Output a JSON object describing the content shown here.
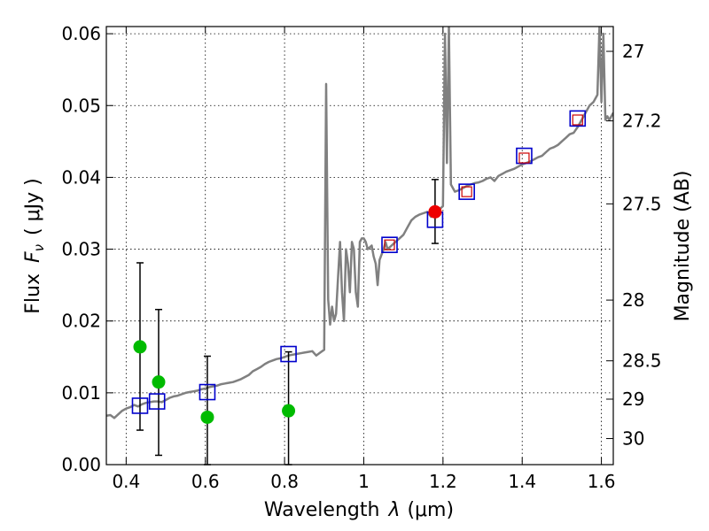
{
  "chart_data": {
    "type": "scatter",
    "title": "",
    "xlabel_main": "Wavelength",
    "xlabel_symbol": "λ",
    "xlabel_unit": "(μm)",
    "ylabel_main": "Flux",
    "ylabel_symbol": "F",
    "ylabel_subscript": "ν",
    "ylabel_unit": "( μJy )",
    "y2label": "Magnitude (AB)",
    "xlim": [
      0.35,
      1.63
    ],
    "ylim": [
      0.0,
      0.061
    ],
    "xticks": [
      0.4,
      0.6,
      0.8,
      1.0,
      1.2,
      1.4,
      1.6
    ],
    "xtick_labels": [
      "0.4",
      "0.6",
      "0.8",
      "1",
      "1.2",
      "1.4",
      "1.6"
    ],
    "yticks": [
      0.0,
      0.01,
      0.02,
      0.03,
      0.04,
      0.05,
      0.06
    ],
    "ytick_labels": [
      "0.00",
      "0.01",
      "0.02",
      "0.03",
      "0.04",
      "0.05",
      "0.06"
    ],
    "y2ticks": [
      27,
      27.2,
      27.5,
      28,
      28.5,
      29,
      30
    ],
    "y2tick_labels": [
      "27",
      "27.2",
      "27.5",
      "28",
      "28.5",
      "29",
      "30"
    ],
    "grid": true,
    "colors": {
      "model": "#808080",
      "model_photometry": "#0000cc",
      "inner_square": "#cc0000",
      "observed_detections": "#00bb00",
      "observed_highlight": "#ee0000",
      "errorbar": "#000000"
    },
    "series": [
      {
        "name": "model_spectrum",
        "style": "line",
        "x": [
          0.35,
          0.36,
          0.37,
          0.38,
          0.39,
          0.4,
          0.41,
          0.42,
          0.43,
          0.44,
          0.45,
          0.46,
          0.47,
          0.48,
          0.49,
          0.5,
          0.51,
          0.52,
          0.53,
          0.54,
          0.55,
          0.56,
          0.57,
          0.58,
          0.59,
          0.6,
          0.61,
          0.62,
          0.63,
          0.64,
          0.65,
          0.66,
          0.67,
          0.68,
          0.69,
          0.7,
          0.71,
          0.72,
          0.73,
          0.74,
          0.75,
          0.76,
          0.77,
          0.78,
          0.79,
          0.8,
          0.81,
          0.82,
          0.83,
          0.84,
          0.85,
          0.86,
          0.87,
          0.88,
          0.89,
          0.9,
          0.905,
          0.91,
          0.915,
          0.92,
          0.925,
          0.93,
          0.935,
          0.94,
          0.945,
          0.95,
          0.955,
          0.96,
          0.965,
          0.97,
          0.975,
          0.98,
          0.985,
          0.99,
          0.995,
          1.0,
          1.005,
          1.01,
          1.02,
          1.025,
          1.03,
          1.035,
          1.04,
          1.05,
          1.055,
          1.06,
          1.07,
          1.08,
          1.09,
          1.1,
          1.11,
          1.12,
          1.13,
          1.14,
          1.15,
          1.16,
          1.17,
          1.18,
          1.19,
          1.2,
          1.205,
          1.21,
          1.215,
          1.22,
          1.23,
          1.24,
          1.25,
          1.26,
          1.27,
          1.28,
          1.29,
          1.3,
          1.31,
          1.32,
          1.33,
          1.34,
          1.35,
          1.36,
          1.37,
          1.38,
          1.39,
          1.4,
          1.41,
          1.42,
          1.43,
          1.44,
          1.45,
          1.46,
          1.47,
          1.48,
          1.49,
          1.5,
          1.51,
          1.52,
          1.53,
          1.54,
          1.55,
          1.56,
          1.57,
          1.58,
          1.59,
          1.595,
          1.6,
          1.605,
          1.61,
          1.615,
          1.62,
          1.625,
          1.63
        ],
        "y": [
          0.0068,
          0.0069,
          0.0065,
          0.007,
          0.0075,
          0.0078,
          0.008,
          0.0083,
          0.0081,
          0.0084,
          0.0086,
          0.0087,
          0.0088,
          0.0088,
          0.0087,
          0.009,
          0.0093,
          0.0095,
          0.0096,
          0.0098,
          0.01,
          0.0101,
          0.0102,
          0.0103,
          0.0105,
          0.0106,
          0.0108,
          0.0109,
          0.011,
          0.0112,
          0.0113,
          0.0114,
          0.0115,
          0.0117,
          0.0119,
          0.0122,
          0.0125,
          0.013,
          0.0133,
          0.0136,
          0.014,
          0.0143,
          0.0145,
          0.0147,
          0.0148,
          0.015,
          0.0152,
          0.0153,
          0.0154,
          0.0155,
          0.0156,
          0.0157,
          0.0158,
          0.0152,
          0.0156,
          0.016,
          0.053,
          0.023,
          0.0195,
          0.022,
          0.02,
          0.021,
          0.026,
          0.031,
          0.024,
          0.02,
          0.03,
          0.028,
          0.024,
          0.031,
          0.03,
          0.024,
          0.022,
          0.031,
          0.0315,
          0.0315,
          0.031,
          0.03,
          0.0305,
          0.029,
          0.028,
          0.025,
          0.0285,
          0.03,
          0.031,
          0.03,
          0.0305,
          0.031,
          0.0315,
          0.032,
          0.033,
          0.034,
          0.0345,
          0.0348,
          0.035,
          0.0352,
          0.0345,
          0.035,
          0.0355,
          0.036,
          0.06,
          0.042,
          0.061,
          0.039,
          0.038,
          0.0382,
          0.0385,
          0.0388,
          0.039,
          0.0392,
          0.0393,
          0.0395,
          0.0398,
          0.04,
          0.0395,
          0.0402,
          0.0405,
          0.0408,
          0.041,
          0.0412,
          0.0415,
          0.0418,
          0.042,
          0.0422,
          0.0425,
          0.0428,
          0.043,
          0.0435,
          0.044,
          0.0442,
          0.0445,
          0.045,
          0.0455,
          0.046,
          0.0462,
          0.047,
          0.048,
          0.049,
          0.05,
          0.0505,
          0.0515,
          0.061,
          0.0505,
          0.06,
          0.048,
          0.0485,
          0.048,
          0.0485,
          0.049
        ]
      },
      {
        "name": "model_photometry",
        "style": "open-square",
        "x": [
          0.435,
          0.478,
          0.605,
          0.81,
          1.065,
          1.18,
          1.26,
          1.405,
          1.54
        ],
        "y": [
          0.0082,
          0.0088,
          0.0101,
          0.0154,
          0.0306,
          0.0341,
          0.038,
          0.043,
          0.0482
        ]
      },
      {
        "name": "inner_squares",
        "style": "open-square-small",
        "x": [
          1.065,
          1.26,
          1.405,
          1.54
        ],
        "y": [
          0.0306,
          0.038,
          0.0427,
          0.048
        ]
      },
      {
        "name": "observed_detections",
        "style": "filled-circle",
        "x": [
          0.435,
          0.482,
          0.605,
          0.81
        ],
        "y": [
          0.0164,
          0.0115,
          0.0066,
          0.0075
        ],
        "yerr_low": [
          0.0048,
          0.0013,
          0.0,
          0.0
        ],
        "yerr_high": [
          0.0281,
          0.0216,
          0.0151,
          0.0157
        ]
      },
      {
        "name": "observed_highlight",
        "style": "filled-circle",
        "x": [
          1.18
        ],
        "y": [
          0.0352
        ],
        "yerr_low": [
          0.0308
        ],
        "yerr_high": [
          0.0397
        ]
      }
    ]
  }
}
